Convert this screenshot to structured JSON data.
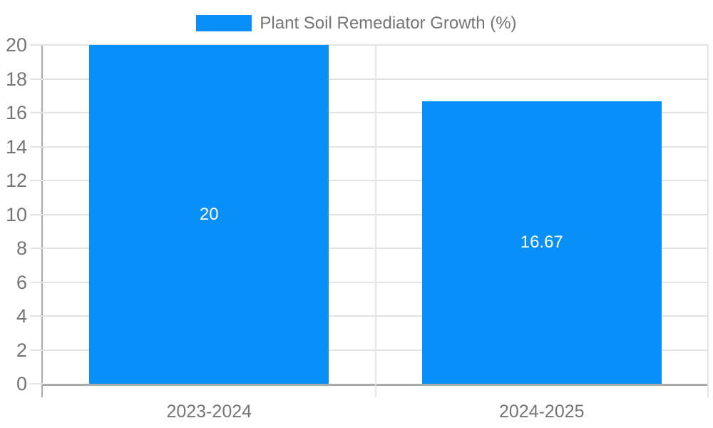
{
  "chart_data": {
    "type": "bar",
    "title": "",
    "legend": {
      "label": "Plant Soil Remediator Growth (%)",
      "position": "top",
      "swatch_color": "#0990f8"
    },
    "categories": [
      "2023-2024",
      "2024-2025"
    ],
    "series": [
      {
        "name": "Plant Soil Remediator Growth (%)",
        "values": [
          20,
          16.67
        ],
        "data_labels": [
          "20",
          "16.67"
        ],
        "color": "#0990f8"
      }
    ],
    "xlabel": "",
    "ylabel": "",
    "ylim": [
      0,
      20
    ],
    "yticks": [
      0,
      2,
      4,
      6,
      8,
      10,
      12,
      14,
      16,
      18,
      20
    ],
    "ytick_labels": [
      "0",
      "2",
      "4",
      "6",
      "8",
      "10",
      "12",
      "14",
      "16",
      "18",
      "20"
    ],
    "grid": true,
    "legend_position": "top-center",
    "colors": {
      "bar": "#0990f8",
      "data_label": "#ffffff",
      "tick_label": "#757575",
      "gridline": "#e3e3e3",
      "axis_line": "#a9a9a9",
      "background": "#ffffff"
    }
  }
}
